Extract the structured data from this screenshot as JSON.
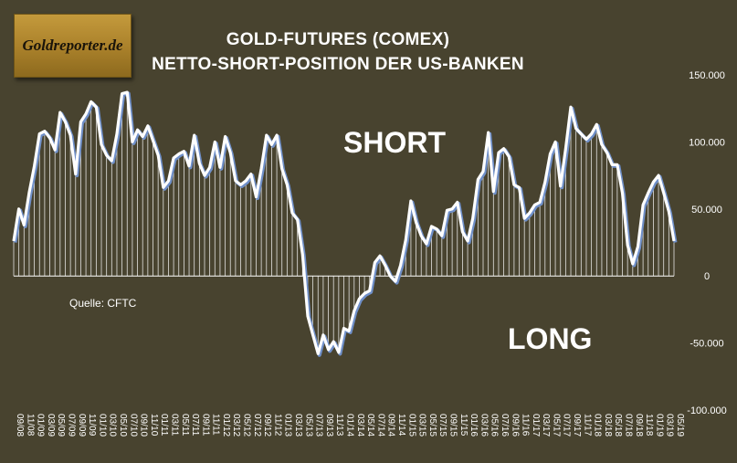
{
  "logo": {
    "text": "Goldreporter.de"
  },
  "chart_data": {
    "type": "area",
    "title": "GOLD-FUTURES (COMEX)",
    "subtitle": "NETTO-SHORT-POSITION DER US-BANKEN",
    "annotations": {
      "short": "SHORT",
      "long": "LONG",
      "source": "Quelle: CFTC"
    },
    "ylim": [
      -100000,
      150000
    ],
    "y_ticks": [
      {
        "value": 150000,
        "label": "150.000"
      },
      {
        "value": 100000,
        "label": "100.000"
      },
      {
        "value": 50000,
        "label": "50.000"
      },
      {
        "value": 0,
        "label": "0"
      },
      {
        "value": -50000,
        "label": "-50.000"
      },
      {
        "value": -100000,
        "label": "-100.000"
      }
    ],
    "x_tick_labels": [
      "09/08",
      "11/08",
      "01/09",
      "03/09",
      "05/09",
      "07/09",
      "09/09",
      "11/09",
      "01/10",
      "03/10",
      "05/10",
      "07/10",
      "09/10",
      "11/10",
      "01/11",
      "03/11",
      "05/11",
      "07/11",
      "09/11",
      "11/11",
      "01/12",
      "03/12",
      "05/12",
      "07/12",
      "09/12",
      "11/12",
      "01/13",
      "03/13",
      "05/13",
      "07/13",
      "09/13",
      "11/13",
      "01/14",
      "03/14",
      "05/14",
      "07/14",
      "09/14",
      "11/14",
      "01/15",
      "03/15",
      "05/15",
      "07/15",
      "09/15",
      "11/15",
      "01/16",
      "03/16",
      "05/16",
      "07/16",
      "09/16",
      "11/16",
      "01/17",
      "03/17",
      "05/17",
      "07/17",
      "09/17",
      "11/17",
      "01/18",
      "03/18",
      "05/18",
      "07/18",
      "09/18",
      "11/18",
      "01/19",
      "03/19",
      "05/19"
    ],
    "series": [
      {
        "values": [
          26000,
          50000,
          38000,
          62000,
          82000,
          106000,
          108000,
          103000,
          94000,
          122000,
          115000,
          105000,
          76000,
          115000,
          121000,
          130000,
          126000,
          98000,
          90000,
          86000,
          106000,
          136000,
          137000,
          100000,
          109000,
          104000,
          112000,
          101000,
          90000,
          66000,
          71000,
          88000,
          91000,
          93000,
          82000,
          105000,
          84000,
          75000,
          81000,
          100000,
          81000,
          104000,
          92000,
          71000,
          68000,
          71000,
          76000,
          59000,
          80000,
          105000,
          98000,
          105000,
          80000,
          68000,
          47000,
          42000,
          16000,
          -30000,
          -44000,
          -58000,
          -44000,
          -55000,
          -49000,
          -57000,
          -39000,
          -41000,
          -26000,
          -17000,
          -13000,
          -11000,
          10000,
          15000,
          8000,
          0,
          -4000,
          8000,
          27000,
          56000,
          40000,
          30000,
          24000,
          37000,
          35000,
          30000,
          49000,
          50000,
          55000,
          33000,
          26000,
          43000,
          72000,
          78000,
          107000,
          63000,
          92000,
          95000,
          89000,
          68000,
          66000,
          43000,
          47000,
          53000,
          55000,
          70000,
          91000,
          100000,
          67000,
          95000,
          126000,
          110000,
          106000,
          102000,
          106000,
          113000,
          98000,
          92000,
          83000,
          83000,
          62000,
          23000,
          9000,
          22000,
          53000,
          62000,
          70000,
          75000,
          62000,
          48000,
          26000
        ]
      }
    ]
  },
  "colors": {
    "background": "#48432f",
    "line": "#ffffff",
    "line_shadow": "#6f8fc8",
    "fill": "#ffffff"
  }
}
